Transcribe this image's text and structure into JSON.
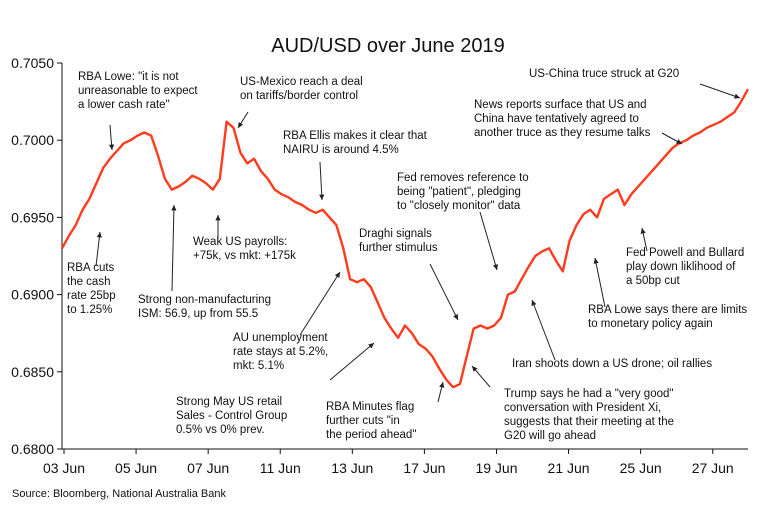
{
  "chart_data": {
    "type": "line",
    "title": "AUD/USD over June 2019",
    "xlabel": "",
    "ylabel": "",
    "ylim": [
      0.68,
      0.705
    ],
    "y_ticks": [
      "0.7050",
      "0.7000",
      "0.6950",
      "0.6900",
      "0.6850",
      "0.6800"
    ],
    "x_ticks": [
      "03 Jun",
      "05 Jun",
      "07 Jun",
      "11 Jun",
      "13 Jun",
      "17 Jun",
      "19 Jun",
      "21 Jun",
      "25 Jun",
      "27 Jun"
    ],
    "grid": false,
    "legend": "none",
    "line_color": "#ff3c1e",
    "series": [
      {
        "x": [
          0.0,
          0.2,
          0.4,
          0.6,
          0.8,
          1.0,
          1.2,
          1.4,
          1.6,
          1.8,
          2.0,
          2.2,
          2.4,
          2.6,
          2.8,
          3.0,
          3.2,
          3.4,
          3.6,
          3.8,
          4.0,
          4.2,
          4.4,
          4.6,
          4.8,
          5.0,
          5.2,
          5.4,
          5.6,
          5.8,
          6.0,
          6.2,
          6.4,
          6.6,
          6.8,
          7.0,
          7.2,
          7.4,
          7.6,
          7.8,
          8.0,
          8.2,
          8.4,
          8.6,
          8.8,
          9.0,
          9.2,
          9.4,
          9.6,
          9.8,
          10.0,
          10.2,
          10.4,
          10.6,
          10.8,
          11.0,
          11.2,
          11.4,
          11.6,
          11.8,
          12.0,
          12.2,
          12.4,
          12.6,
          12.8,
          13.0,
          13.2,
          13.4,
          13.6,
          13.8,
          14.0,
          14.2,
          14.4,
          14.6,
          14.8,
          15.0,
          15.2,
          15.4,
          15.6,
          15.8,
          16.0,
          16.2,
          16.4,
          16.6,
          16.8,
          17.0,
          17.2,
          17.4,
          17.6,
          17.8,
          18.0,
          18.2,
          18.4,
          18.6,
          18.8,
          19.0,
          19.2,
          19.4,
          19.6,
          19.8,
          20.0
        ],
        "y": [
          0.693,
          0.6938,
          0.6945,
          0.6955,
          0.6962,
          0.6972,
          0.6982,
          0.6988,
          0.6993,
          0.6998,
          0.7,
          0.7003,
          0.7005,
          0.7003,
          0.699,
          0.6975,
          0.6968,
          0.697,
          0.6973,
          0.6977,
          0.6975,
          0.6972,
          0.6968,
          0.6975,
          0.7012,
          0.7008,
          0.6992,
          0.6985,
          0.6988,
          0.698,
          0.6975,
          0.6968,
          0.6965,
          0.6963,
          0.696,
          0.6958,
          0.6955,
          0.6953,
          0.6955,
          0.695,
          0.6945,
          0.693,
          0.691,
          0.6908,
          0.691,
          0.6905,
          0.6895,
          0.6885,
          0.6878,
          0.6872,
          0.688,
          0.6875,
          0.6868,
          0.6865,
          0.686,
          0.6852,
          0.6845,
          0.684,
          0.6842,
          0.686,
          0.6878,
          0.688,
          0.6878,
          0.688,
          0.6885,
          0.69,
          0.6902,
          0.691,
          0.6918,
          0.6925,
          0.6928,
          0.693,
          0.6922,
          0.6915,
          0.6935,
          0.6945,
          0.6952,
          0.6955,
          0.695,
          0.6962,
          0.6965,
          0.6968,
          0.6958,
          0.6965,
          0.697,
          0.6975,
          0.698,
          0.6985,
          0.699,
          0.6995,
          0.6998,
          0.7,
          0.7003,
          0.7005,
          0.7008,
          0.701,
          0.7012,
          0.7015,
          0.7018,
          0.7025,
          0.7033
        ]
      }
    ],
    "annotations": [
      [
        "RBA Lowe: \"it is not",
        "unreasonable to expect",
        "a lower cash rate\""
      ],
      [
        "US-Mexico reach a deal",
        "on tariffs/border control"
      ],
      [
        "RBA Ellis makes it clear that",
        "NAIRU is around 4.5%"
      ],
      [
        "US-China truce struck at G20"
      ],
      [
        "News reports surface that US and",
        "China have tentatively agreed to",
        "another truce as they resume talks"
      ],
      [
        "Fed removes reference to",
        "being \"patient\", pledging",
        "to \"closely monitor\" data"
      ],
      [
        "RBA cuts",
        "the cash",
        "rate 25bp",
        "to 1.25%"
      ],
      [
        "Weak US payrolls:",
        "+75k, vs mkt: +175k"
      ],
      [
        "Draghi signals",
        "further stimulus"
      ],
      [
        "Strong non-manufacturing",
        "ISM: 56.9, up from 55.5"
      ],
      [
        "Fed Powell and Bullard",
        "play down liklihood of",
        "a 50bp cut"
      ],
      [
        "RBA Lowe says there are limits",
        "to monetary policy again"
      ],
      [
        "AU unemployment",
        "rate stays at 5.2%,",
        "mkt: 5.1%"
      ],
      [
        "Iran shoots down a US drone; oil rallies"
      ],
      [
        "Strong May US retail",
        "Sales - Control Group",
        "0.5% vs 0% prev."
      ],
      [
        "RBA Minutes flag",
        "further cuts \"in",
        "the period ahead\""
      ],
      [
        "Trump says he had a \"very good\"",
        "conversation with President Xi,",
        "suggests that their meeting at the",
        "G20 will go ahead"
      ]
    ],
    "source": "Source: Bloomberg, National Australia Bank"
  }
}
